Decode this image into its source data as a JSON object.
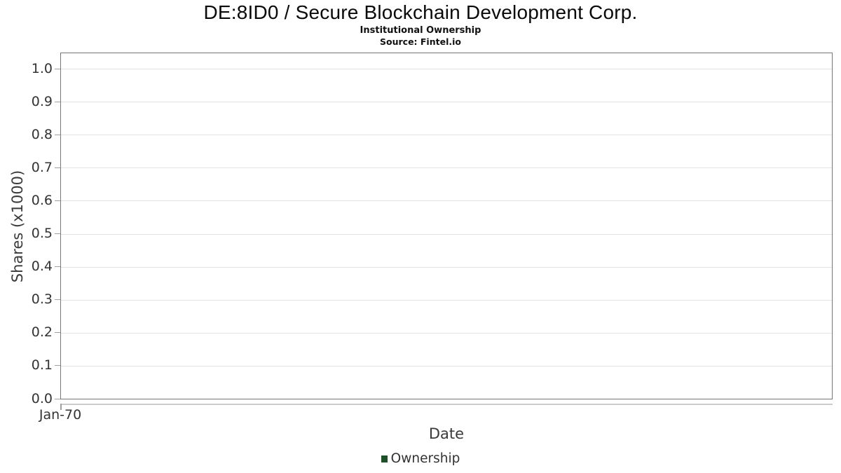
{
  "header": {
    "title": "DE:8ID0 / Secure Blockchain Development Corp.",
    "subtitle": "Institutional Ownership",
    "source": "Source: Fintel.io"
  },
  "chart_data": {
    "type": "line",
    "title": "DE:8ID0 / Secure Blockchain Development Corp.",
    "subtitle": "Institutional Ownership",
    "source_note": "Source: Fintel.io",
    "xlabel": "Date",
    "ylabel": "Shares (x1000)",
    "ylim": [
      0.0,
      1.05
    ],
    "yticks": [
      0.0,
      0.1,
      0.2,
      0.3,
      0.4,
      0.5,
      0.6,
      0.7,
      0.8,
      0.9,
      1.0
    ],
    "ytick_decimals": 1,
    "xtick_labels": [
      "Jan-70"
    ],
    "grid": true,
    "legend_position": "bottom-center",
    "series": [
      {
        "name": "Ownership",
        "color": "#1e5128",
        "x": [],
        "values": []
      }
    ],
    "colors": {
      "legend_swatch": "#1e5128",
      "gridline": "#e2e2e2",
      "plot_border": "#767676",
      "axis_line": "#cccccc",
      "tick": "#a0a0a0",
      "tick_label": "#333333",
      "axis_title": "#3a3a3a",
      "title_text": "#0a0a0a"
    }
  }
}
